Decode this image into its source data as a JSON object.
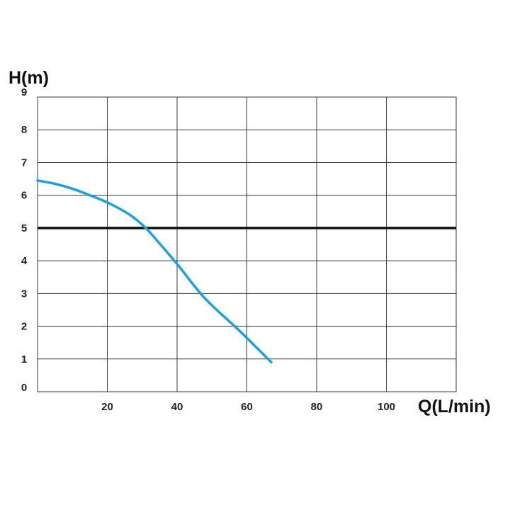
{
  "chart_data": {
    "type": "line",
    "ylabel": "H(m)",
    "xlabel": "Q(L/min)",
    "xlim": [
      0,
      120
    ],
    "ylim": [
      0,
      9
    ],
    "x_ticks": [
      20,
      40,
      60,
      80,
      100
    ],
    "x_tick_labels": [
      "20",
      "40",
      "60",
      "80",
      "100"
    ],
    "y_ticks": [
      0,
      1,
      2,
      3,
      4,
      5,
      6,
      7,
      8,
      9
    ],
    "y_tick_labels": [
      "0",
      "1",
      "2",
      "3",
      "4",
      "5",
      "6",
      "7",
      "8",
      "9"
    ],
    "grid": true,
    "reference_line": {
      "y": 5,
      "color": "#111111"
    },
    "series": [
      {
        "color": "#1da1dc",
        "x": [
          0,
          5,
          10,
          15,
          20,
          25,
          28,
          31,
          34,
          40,
          48,
          58,
          67
        ],
        "y": [
          6.45,
          6.35,
          6.2,
          6.0,
          5.78,
          5.5,
          5.28,
          5.0,
          4.65,
          3.9,
          2.85,
          1.85,
          0.9
        ]
      }
    ]
  }
}
